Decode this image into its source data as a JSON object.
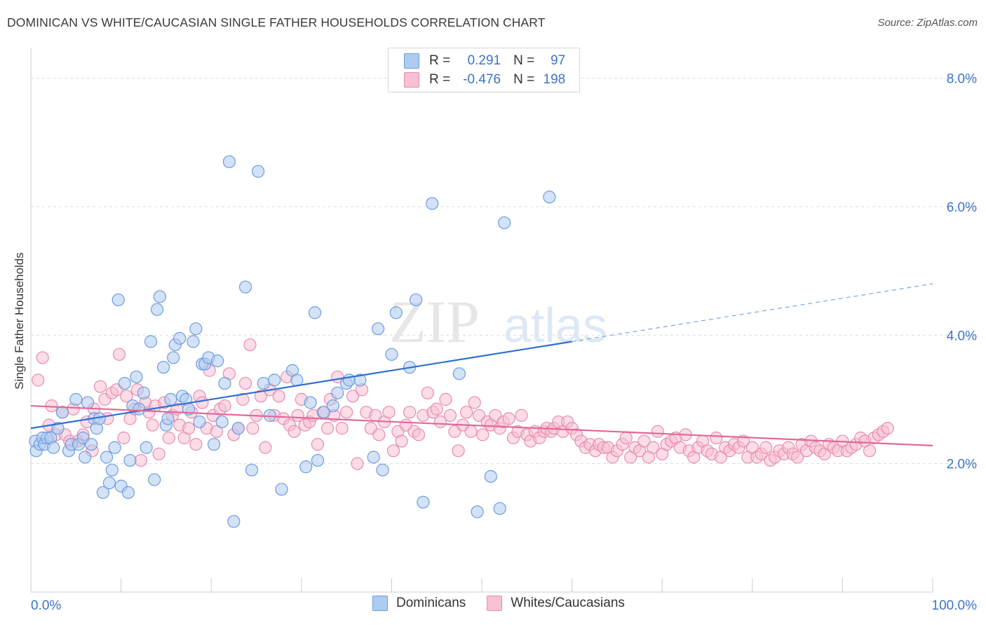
{
  "title": "DOMINICAN VS WHITE/CAUCASIAN SINGLE FATHER HOUSEHOLDS CORRELATION CHART",
  "source": "Source: ZipAtlas.com",
  "watermark": {
    "zip": "ZIP",
    "atlas": "atlas"
  },
  "legend": {
    "r_label": "R =",
    "n_label": "N =",
    "rows": [
      {
        "r": "0.291",
        "n": "97",
        "fill": "#aecbf0",
        "stroke": "#6b9ce0"
      },
      {
        "r": "-0.476",
        "n": "198",
        "fill": "#f7c0d4",
        "stroke": "#e98aad"
      }
    ]
  },
  "bottom_legend": [
    {
      "label": "Dominicans",
      "fill": "#aecbf0",
      "stroke": "#6b9ce0"
    },
    {
      "label": "Whites/Caucasians",
      "fill": "#f7c0d4",
      "stroke": "#e98aad"
    }
  ],
  "chart_data": {
    "type": "scatter",
    "title": "DOMINICAN VS WHITE/CAUCASIAN SINGLE FATHER HOUSEHOLDS CORRELATION CHART",
    "xlabel": "",
    "ylabel": "Single Father Households",
    "xlim": [
      0,
      100
    ],
    "ylim": [
      0,
      8.4
    ],
    "x_tick_labels": [
      "0.0%",
      "100.0%"
    ],
    "y_ticks": [
      2.0,
      4.0,
      6.0,
      8.0
    ],
    "y_tick_labels": [
      "2.0%",
      "4.0%",
      "6.0%",
      "8.0%"
    ],
    "grid": "horizontal dashed",
    "legend_position": "top-center",
    "series": [
      {
        "name": "Dominicans",
        "color": "#6b9ce0",
        "fill": "#aecbf0",
        "trend": {
          "x": [
            0,
            60
          ],
          "y": [
            2.55,
            3.9
          ],
          "dashed_extension": {
            "x": [
              60,
              100
            ],
            "y": [
              3.9,
              4.8
            ]
          },
          "line_color": "#2f6fd0"
        },
        "points": [
          [
            0.5,
            2.35
          ],
          [
            0.6,
            2.2
          ],
          [
            1.0,
            2.3
          ],
          [
            1.3,
            2.4
          ],
          [
            1.5,
            2.3
          ],
          [
            1.8,
            2.4
          ],
          [
            2.2,
            2.4
          ],
          [
            2.5,
            2.25
          ],
          [
            3.0,
            2.55
          ],
          [
            3.5,
            2.8
          ],
          [
            4.2,
            2.2
          ],
          [
            4.5,
            2.3
          ],
          [
            5.0,
            3.0
          ],
          [
            5.3,
            2.3
          ],
          [
            5.8,
            2.4
          ],
          [
            6.0,
            2.1
          ],
          [
            6.3,
            2.95
          ],
          [
            6.7,
            2.3
          ],
          [
            7.0,
            2.7
          ],
          [
            7.3,
            2.55
          ],
          [
            7.6,
            2.7
          ],
          [
            8.0,
            1.55
          ],
          [
            8.4,
            2.1
          ],
          [
            8.7,
            1.7
          ],
          [
            9.0,
            1.9
          ],
          [
            9.3,
            2.25
          ],
          [
            9.7,
            4.55
          ],
          [
            10.0,
            1.65
          ],
          [
            10.4,
            3.25
          ],
          [
            10.8,
            1.55
          ],
          [
            11.0,
            2.05
          ],
          [
            11.3,
            2.9
          ],
          [
            11.7,
            3.35
          ],
          [
            12.0,
            2.85
          ],
          [
            12.5,
            3.1
          ],
          [
            12.8,
            2.25
          ],
          [
            13.3,
            3.9
          ],
          [
            13.7,
            1.75
          ],
          [
            14.0,
            4.4
          ],
          [
            14.3,
            4.6
          ],
          [
            14.7,
            3.5
          ],
          [
            15.0,
            2.6
          ],
          [
            15.2,
            2.7
          ],
          [
            15.5,
            3.0
          ],
          [
            15.8,
            3.65
          ],
          [
            16.0,
            3.85
          ],
          [
            16.5,
            3.95
          ],
          [
            16.8,
            3.05
          ],
          [
            17.2,
            3.0
          ],
          [
            17.5,
            2.85
          ],
          [
            18.0,
            3.9
          ],
          [
            18.3,
            4.1
          ],
          [
            18.7,
            2.65
          ],
          [
            19.0,
            3.55
          ],
          [
            19.3,
            3.55
          ],
          [
            19.7,
            3.65
          ],
          [
            20.3,
            2.3
          ],
          [
            20.7,
            3.6
          ],
          [
            21.2,
            2.65
          ],
          [
            21.5,
            3.25
          ],
          [
            22.0,
            6.7
          ],
          [
            22.5,
            1.1
          ],
          [
            23.0,
            2.55
          ],
          [
            23.8,
            4.75
          ],
          [
            24.5,
            1.9
          ],
          [
            25.2,
            6.55
          ],
          [
            25.8,
            3.25
          ],
          [
            26.5,
            2.75
          ],
          [
            27.0,
            3.3
          ],
          [
            27.8,
            1.6
          ],
          [
            29.0,
            3.45
          ],
          [
            29.5,
            3.3
          ],
          [
            30.5,
            1.95
          ],
          [
            31.0,
            2.95
          ],
          [
            31.5,
            4.35
          ],
          [
            31.8,
            2.05
          ],
          [
            32.5,
            2.8
          ],
          [
            33.5,
            2.9
          ],
          [
            34.0,
            3.1
          ],
          [
            35.0,
            3.25
          ],
          [
            35.3,
            3.3
          ],
          [
            36.5,
            3.3
          ],
          [
            38.0,
            2.1
          ],
          [
            38.5,
            4.1
          ],
          [
            39.0,
            1.9
          ],
          [
            40.0,
            3.7
          ],
          [
            40.5,
            4.35
          ],
          [
            42.0,
            3.5
          ],
          [
            42.7,
            4.55
          ],
          [
            43.5,
            1.4
          ],
          [
            44.5,
            6.05
          ],
          [
            47.5,
            3.4
          ],
          [
            49.5,
            1.25
          ],
          [
            51.0,
            1.8
          ],
          [
            52.0,
            1.3
          ],
          [
            52.5,
            5.75
          ],
          [
            57.5,
            6.15
          ]
        ]
      },
      {
        "name": "Whites/Caucasians",
        "color": "#e98aad",
        "fill": "#f7c0d4",
        "trend": {
          "x": [
            0,
            100
          ],
          "y": [
            2.9,
            2.28
          ],
          "line_color": "#e06898"
        },
        "points": [
          [
            0.8,
            3.3
          ],
          [
            1.3,
            3.65
          ],
          [
            2.0,
            2.6
          ],
          [
            2.3,
            2.9
          ],
          [
            2.8,
            2.45
          ],
          [
            3.5,
            2.8
          ],
          [
            3.8,
            2.45
          ],
          [
            4.3,
            2.35
          ],
          [
            4.7,
            2.85
          ],
          [
            5.2,
            2.35
          ],
          [
            5.8,
            2.45
          ],
          [
            6.2,
            2.65
          ],
          [
            6.8,
            2.2
          ],
          [
            7.0,
            2.85
          ],
          [
            7.7,
            3.2
          ],
          [
            8.2,
            3.0
          ],
          [
            8.5,
            2.7
          ],
          [
            9.0,
            3.1
          ],
          [
            9.5,
            3.15
          ],
          [
            9.8,
            3.7
          ],
          [
            10.3,
            2.4
          ],
          [
            10.6,
            3.05
          ],
          [
            11.0,
            2.7
          ],
          [
            11.5,
            2.85
          ],
          [
            11.8,
            3.15
          ],
          [
            12.2,
            2.05
          ],
          [
            12.7,
            2.95
          ],
          [
            13.1,
            2.8
          ],
          [
            13.5,
            2.6
          ],
          [
            13.8,
            2.9
          ],
          [
            14.2,
            2.15
          ],
          [
            14.8,
            2.95
          ],
          [
            15.3,
            2.4
          ],
          [
            15.7,
            2.75
          ],
          [
            16.2,
            2.85
          ],
          [
            16.5,
            2.6
          ],
          [
            17.0,
            2.4
          ],
          [
            17.5,
            2.55
          ],
          [
            17.8,
            2.8
          ],
          [
            18.3,
            2.3
          ],
          [
            18.7,
            3.05
          ],
          [
            19.0,
            2.95
          ],
          [
            19.5,
            2.55
          ],
          [
            19.8,
            3.45
          ],
          [
            20.2,
            2.75
          ],
          [
            20.6,
            2.5
          ],
          [
            21.0,
            2.85
          ],
          [
            21.5,
            2.9
          ],
          [
            22.0,
            3.4
          ],
          [
            22.5,
            2.45
          ],
          [
            23.0,
            2.55
          ],
          [
            23.5,
            3.0
          ],
          [
            23.8,
            3.25
          ],
          [
            24.3,
            3.85
          ],
          [
            24.6,
            2.55
          ],
          [
            25.0,
            2.75
          ],
          [
            25.5,
            3.05
          ],
          [
            26.0,
            2.25
          ],
          [
            26.5,
            3.15
          ],
          [
            27.0,
            2.75
          ],
          [
            27.5,
            3.05
          ],
          [
            28.0,
            2.7
          ],
          [
            28.4,
            3.35
          ],
          [
            28.7,
            2.6
          ],
          [
            29.2,
            2.5
          ],
          [
            29.6,
            2.75
          ],
          [
            30.0,
            3.0
          ],
          [
            30.4,
            2.6
          ],
          [
            30.9,
            2.65
          ],
          [
            31.3,
            2.75
          ],
          [
            31.8,
            2.3
          ],
          [
            32.4,
            2.8
          ],
          [
            32.9,
            2.55
          ],
          [
            33.2,
            3.0
          ],
          [
            33.6,
            2.75
          ],
          [
            34.0,
            3.35
          ],
          [
            34.5,
            2.55
          ],
          [
            35.0,
            2.8
          ],
          [
            35.7,
            3.05
          ],
          [
            36.2,
            2.0
          ],
          [
            36.7,
            3.15
          ],
          [
            37.2,
            2.8
          ],
          [
            37.7,
            2.55
          ],
          [
            38.2,
            2.75
          ],
          [
            38.6,
            2.45
          ],
          [
            39.2,
            2.65
          ],
          [
            39.7,
            2.8
          ],
          [
            40.2,
            2.2
          ],
          [
            40.7,
            2.5
          ],
          [
            41.1,
            2.35
          ],
          [
            41.6,
            2.6
          ],
          [
            42.0,
            2.8
          ],
          [
            42.5,
            2.5
          ],
          [
            43.0,
            2.45
          ],
          [
            43.5,
            2.75
          ],
          [
            44.0,
            3.1
          ],
          [
            44.6,
            2.8
          ],
          [
            45.0,
            2.85
          ],
          [
            45.4,
            2.65
          ],
          [
            46.0,
            3.0
          ],
          [
            46.5,
            2.75
          ],
          [
            47.0,
            2.5
          ],
          [
            47.4,
            2.2
          ],
          [
            47.9,
            2.6
          ],
          [
            48.3,
            2.8
          ],
          [
            48.8,
            2.5
          ],
          [
            49.2,
            2.95
          ],
          [
            49.7,
            2.75
          ],
          [
            50.1,
            2.45
          ],
          [
            50.6,
            2.65
          ],
          [
            51.0,
            2.6
          ],
          [
            51.5,
            2.75
          ],
          [
            52.0,
            2.55
          ],
          [
            52.4,
            2.65
          ],
          [
            53.0,
            2.7
          ],
          [
            53.5,
            2.4
          ],
          [
            54.0,
            2.5
          ],
          [
            54.4,
            2.75
          ],
          [
            55.0,
            2.45
          ],
          [
            55.4,
            2.35
          ],
          [
            55.9,
            2.5
          ],
          [
            56.4,
            2.4
          ],
          [
            56.9,
            2.5
          ],
          [
            57.2,
            2.55
          ],
          [
            57.7,
            2.5
          ],
          [
            58.0,
            2.55
          ],
          [
            58.5,
            2.65
          ],
          [
            59.0,
            2.5
          ],
          [
            59.5,
            2.65
          ],
          [
            60.0,
            2.55
          ],
          [
            60.5,
            2.45
          ],
          [
            61.0,
            2.35
          ],
          [
            61.5,
            2.25
          ],
          [
            62.0,
            2.3
          ],
          [
            62.6,
            2.2
          ],
          [
            63.0,
            2.3
          ],
          [
            63.5,
            2.25
          ],
          [
            64.0,
            2.25
          ],
          [
            64.5,
            2.1
          ],
          [
            65.0,
            2.2
          ],
          [
            65.6,
            2.3
          ],
          [
            66.0,
            2.4
          ],
          [
            66.5,
            2.1
          ],
          [
            67.0,
            2.25
          ],
          [
            67.5,
            2.2
          ],
          [
            68.0,
            2.35
          ],
          [
            68.5,
            2.1
          ],
          [
            69.0,
            2.25
          ],
          [
            69.5,
            2.5
          ],
          [
            70.0,
            2.15
          ],
          [
            70.5,
            2.3
          ],
          [
            71.0,
            2.35
          ],
          [
            71.5,
            2.4
          ],
          [
            72.0,
            2.25
          ],
          [
            72.6,
            2.45
          ],
          [
            73.0,
            2.2
          ],
          [
            73.5,
            2.1
          ],
          [
            74.0,
            2.25
          ],
          [
            74.5,
            2.35
          ],
          [
            75.0,
            2.2
          ],
          [
            75.5,
            2.15
          ],
          [
            76.0,
            2.4
          ],
          [
            76.5,
            2.1
          ],
          [
            77.0,
            2.25
          ],
          [
            77.5,
            2.2
          ],
          [
            78.0,
            2.3
          ],
          [
            78.5,
            2.25
          ],
          [
            79.0,
            2.35
          ],
          [
            79.5,
            2.1
          ],
          [
            80.0,
            2.25
          ],
          [
            80.5,
            2.1
          ],
          [
            81.0,
            2.15
          ],
          [
            81.5,
            2.25
          ],
          [
            82.0,
            2.05
          ],
          [
            82.5,
            2.1
          ],
          [
            83.0,
            2.2
          ],
          [
            83.5,
            2.15
          ],
          [
            84.0,
            2.25
          ],
          [
            84.5,
            2.15
          ],
          [
            85.0,
            2.1
          ],
          [
            85.5,
            2.3
          ],
          [
            86.0,
            2.2
          ],
          [
            86.5,
            2.35
          ],
          [
            87.0,
            2.25
          ],
          [
            87.5,
            2.2
          ],
          [
            88.0,
            2.15
          ],
          [
            88.5,
            2.3
          ],
          [
            89.0,
            2.25
          ],
          [
            89.5,
            2.2
          ],
          [
            90.0,
            2.35
          ],
          [
            90.5,
            2.2
          ],
          [
            91.0,
            2.25
          ],
          [
            91.5,
            2.3
          ],
          [
            92.0,
            2.4
          ],
          [
            92.5,
            2.35
          ],
          [
            93.0,
            2.2
          ],
          [
            93.5,
            2.4
          ],
          [
            94.0,
            2.45
          ],
          [
            94.5,
            2.5
          ],
          [
            95.0,
            2.55
          ]
        ]
      }
    ]
  }
}
